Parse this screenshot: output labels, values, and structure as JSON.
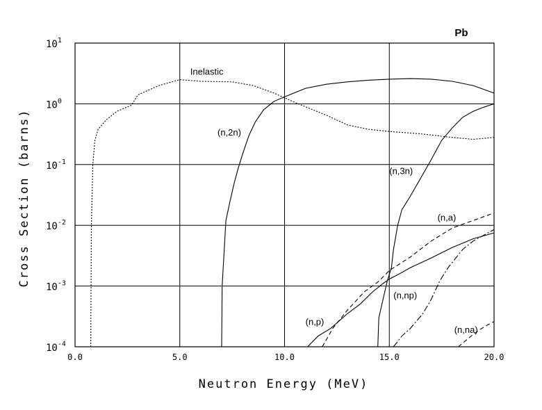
{
  "chart_data": {
    "type": "line",
    "yscale": "log",
    "title": "Pb",
    "xlabel": "Neutron Energy (MeV)",
    "ylabel": "Cross Section (barns)",
    "xlim": [
      0,
      20
    ],
    "ylim": [
      0.0001,
      10
    ],
    "grid": true,
    "x_ticks": [
      {
        "value": 0,
        "label": "0.0"
      },
      {
        "value": 5,
        "label": "5.0"
      },
      {
        "value": 10,
        "label": "10.0"
      },
      {
        "value": 15,
        "label": "15.0"
      },
      {
        "value": 20,
        "label": "20.0"
      }
    ],
    "y_ticks": [
      {
        "value": 10,
        "base": "10",
        "exp": "1"
      },
      {
        "value": 1,
        "base": "10",
        "exp": "0"
      },
      {
        "value": 0.1,
        "base": "10",
        "exp": "-1"
      },
      {
        "value": 0.01,
        "base": "10",
        "exp": "-2"
      },
      {
        "value": 0.001,
        "base": "10",
        "exp": "-3"
      },
      {
        "value": 0.0001,
        "base": "10",
        "exp": "-4"
      }
    ],
    "series": [
      {
        "name": "Inelastic",
        "style": "dotted",
        "label_at": {
          "x": 5.5,
          "y": 3.0
        },
        "points": [
          [
            0.75,
            0.0001
          ],
          [
            0.78,
            0.01
          ],
          [
            0.85,
            0.1
          ],
          [
            0.95,
            0.25
          ],
          [
            1.1,
            0.38
          ],
          [
            1.5,
            0.55
          ],
          [
            2.0,
            0.75
          ],
          [
            2.7,
            0.95
          ],
          [
            3.0,
            1.4
          ],
          [
            4.0,
            2.0
          ],
          [
            5.0,
            2.5
          ],
          [
            6.0,
            2.35
          ],
          [
            7.5,
            2.3
          ],
          [
            8.5,
            2.0
          ],
          [
            9.5,
            1.5
          ],
          [
            10.5,
            1.05
          ],
          [
            12.0,
            0.65
          ],
          [
            13.0,
            0.45
          ],
          [
            14.0,
            0.38
          ],
          [
            15.0,
            0.35
          ],
          [
            16.5,
            0.32
          ],
          [
            18.0,
            0.28
          ],
          [
            19.0,
            0.26
          ],
          [
            20.0,
            0.28
          ]
        ]
      },
      {
        "name": "(n,2n)",
        "style": "solid",
        "label_at": {
          "x": 6.8,
          "y": 0.3
        },
        "points": [
          [
            7.0,
            0.0001
          ],
          [
            7.02,
            0.001
          ],
          [
            7.2,
            0.012
          ],
          [
            7.4,
            0.025
          ],
          [
            7.6,
            0.05
          ],
          [
            7.8,
            0.09
          ],
          [
            8.0,
            0.15
          ],
          [
            8.3,
            0.3
          ],
          [
            8.6,
            0.5
          ],
          [
            9.0,
            0.8
          ],
          [
            9.5,
            1.1
          ],
          [
            10.0,
            1.3
          ],
          [
            11.0,
            1.8
          ],
          [
            12.0,
            2.1
          ],
          [
            13.0,
            2.3
          ],
          [
            14.0,
            2.45
          ],
          [
            15.0,
            2.55
          ],
          [
            16.0,
            2.6
          ],
          [
            17.0,
            2.55
          ],
          [
            18.0,
            2.35
          ],
          [
            19.0,
            2.0
          ],
          [
            20.0,
            1.5
          ]
        ]
      },
      {
        "name": "(n,3n)",
        "style": "solid",
        "label_at": {
          "x": 15.0,
          "y": 0.07
        },
        "points": [
          [
            14.45,
            0.0001
          ],
          [
            14.5,
            0.0003
          ],
          [
            14.7,
            0.0006
          ],
          [
            14.9,
            0.0012
          ],
          [
            15.1,
            0.002
          ],
          [
            15.2,
            0.004
          ],
          [
            15.4,
            0.01
          ],
          [
            15.6,
            0.018
          ],
          [
            16.0,
            0.03
          ],
          [
            16.5,
            0.06
          ],
          [
            17.0,
            0.12
          ],
          [
            17.5,
            0.25
          ],
          [
            18.0,
            0.4
          ],
          [
            18.5,
            0.6
          ],
          [
            19.0,
            0.75
          ],
          [
            19.5,
            0.88
          ],
          [
            20.0,
            1.0
          ]
        ]
      },
      {
        "name": "(n,a)",
        "style": "dashed",
        "label_at": {
          "x": 17.3,
          "y": 0.012
        },
        "points": [
          [
            11.8,
            0.0001
          ],
          [
            12.3,
            0.0002
          ],
          [
            13.0,
            0.0004
          ],
          [
            13.8,
            0.0008
          ],
          [
            14.5,
            0.0012
          ],
          [
            15.0,
            0.0018
          ],
          [
            16.0,
            0.003
          ],
          [
            17.0,
            0.0055
          ],
          [
            18.0,
            0.009
          ],
          [
            19.0,
            0.012
          ],
          [
            20.0,
            0.016
          ]
        ]
      },
      {
        "name": "(n,p)",
        "style": "solid",
        "label_at": {
          "x": 11.0,
          "y": 0.00023
        },
        "points": [
          [
            11.1,
            0.0001
          ],
          [
            11.6,
            0.00015
          ],
          [
            12.2,
            0.0002
          ],
          [
            13.0,
            0.00035
          ],
          [
            13.6,
            0.0005
          ],
          [
            14.2,
            0.0008
          ],
          [
            14.7,
            0.0011
          ],
          [
            15.0,
            0.0013
          ],
          [
            15.5,
            0.0016
          ],
          [
            16.0,
            0.002
          ],
          [
            17.0,
            0.0029
          ],
          [
            18.0,
            0.0043
          ],
          [
            19.0,
            0.006
          ],
          [
            20.0,
            0.0075
          ]
        ]
      },
      {
        "name": "(n,np)",
        "style": "dashdot",
        "label_at": {
          "x": 15.2,
          "y": 0.00062
        },
        "points": [
          [
            15.2,
            0.0001
          ],
          [
            15.6,
            0.00015
          ],
          [
            16.0,
            0.0002
          ],
          [
            16.6,
            0.00035
          ],
          [
            17.0,
            0.0006
          ],
          [
            17.4,
            0.0012
          ],
          [
            17.8,
            0.002
          ],
          [
            18.5,
            0.004
          ],
          [
            19.0,
            0.0055
          ],
          [
            20.0,
            0.0085
          ]
        ]
      },
      {
        "name": "(n,na)",
        "style": "dashed",
        "label_at": {
          "x": 18.1,
          "y": 0.00017
        },
        "points": [
          [
            18.3,
            0.0001
          ],
          [
            18.8,
            0.00014
          ],
          [
            19.3,
            0.00019
          ],
          [
            19.7,
            0.00023
          ],
          [
            20.0,
            0.00026
          ]
        ]
      }
    ]
  }
}
